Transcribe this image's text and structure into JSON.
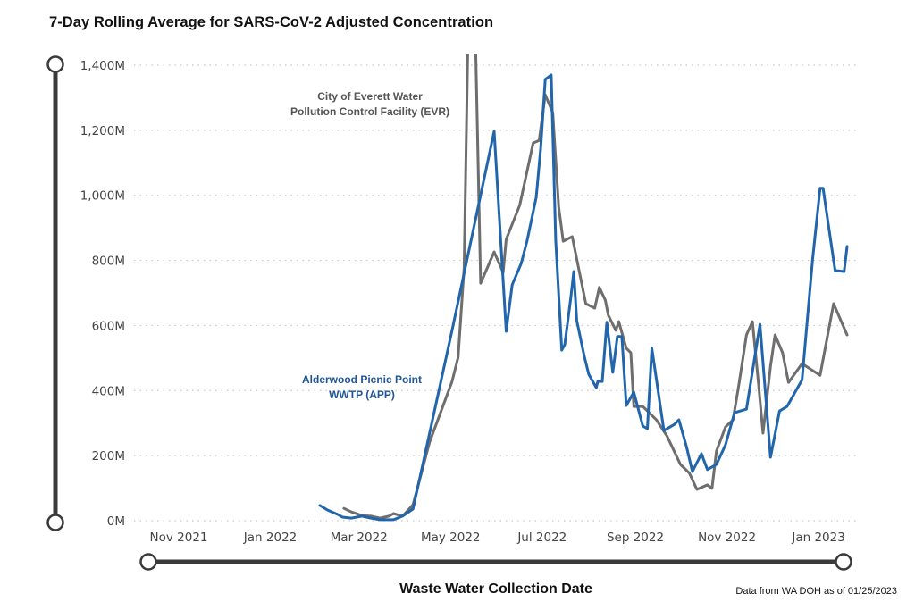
{
  "chart_data": {
    "type": "line",
    "title": "7-Day Rolling Average for SARS-CoV-2 Adjusted Concentration",
    "xlabel": "Waste Water Collection Date",
    "ylabel": "",
    "footnote": "Data from WA DOH as of 01/25/2023",
    "ylim": [
      0,
      1400
    ],
    "y_unit": "M",
    "y_ticks": [
      0,
      200,
      400,
      600,
      800,
      1000,
      1200,
      1400
    ],
    "y_tick_labels": [
      "0M",
      "200M",
      "400M",
      "600M",
      "800M",
      "1,000M",
      "1,200M",
      "1,400M"
    ],
    "xlim": [
      "2021-10-20",
      "2023-01-25"
    ],
    "x_ticks": [
      "2021-11-01",
      "2022-01-01",
      "2022-03-01",
      "2022-05-01",
      "2022-07-01",
      "2022-09-01",
      "2022-11-01",
      "2023-01-01"
    ],
    "x_tick_labels": [
      "Nov 2021",
      "Jan 2022",
      "Mar 2022",
      "May 2022",
      "Jul 2022",
      "Sep 2022",
      "Nov 2022",
      "Jan 2023"
    ],
    "grid": "horizontal-dotted",
    "series": [
      {
        "name": "Alderwood Picnic Point WWTP (APP)",
        "label_lines": [
          "Alderwood Picnic Point",
          "WWTP (APP)"
        ],
        "color": "#2166ac",
        "points": [
          [
            "2022-02-03",
            47
          ],
          [
            "2022-02-08",
            33
          ],
          [
            "2022-02-15",
            19
          ],
          [
            "2022-02-18",
            11
          ],
          [
            "2022-02-24",
            8
          ],
          [
            "2022-03-03",
            14
          ],
          [
            "2022-03-09",
            8
          ],
          [
            "2022-03-15",
            3
          ],
          [
            "2022-03-24",
            3
          ],
          [
            "2022-03-30",
            14
          ],
          [
            "2022-04-06",
            36
          ],
          [
            "2022-05-02",
            585
          ],
          [
            "2022-05-30",
            1197
          ],
          [
            "2022-06-07",
            582
          ],
          [
            "2022-06-11",
            725
          ],
          [
            "2022-06-17",
            791
          ],
          [
            "2022-06-21",
            862
          ],
          [
            "2022-06-27",
            994
          ],
          [
            "2022-06-30",
            1145
          ],
          [
            "2022-07-03",
            1356
          ],
          [
            "2022-07-07",
            1370
          ],
          [
            "2022-07-10",
            862
          ],
          [
            "2022-07-14",
            524
          ],
          [
            "2022-07-16",
            541
          ],
          [
            "2022-07-20",
            683
          ],
          [
            "2022-07-22",
            766
          ],
          [
            "2022-07-24",
            615
          ],
          [
            "2022-07-29",
            505
          ],
          [
            "2022-08-01",
            450
          ],
          [
            "2022-08-06",
            409
          ],
          [
            "2022-08-07",
            428
          ],
          [
            "2022-08-10",
            428
          ],
          [
            "2022-08-13",
            610
          ],
          [
            "2022-08-17",
            456
          ],
          [
            "2022-08-20",
            566
          ],
          [
            "2022-08-23",
            566
          ],
          [
            "2022-08-26",
            354
          ],
          [
            "2022-08-31",
            395
          ],
          [
            "2022-09-06",
            291
          ],
          [
            "2022-09-09",
            283
          ],
          [
            "2022-09-12",
            530
          ],
          [
            "2022-09-20",
            277
          ],
          [
            "2022-09-27",
            296
          ],
          [
            "2022-09-30",
            310
          ],
          [
            "2022-10-05",
            228
          ],
          [
            "2022-10-09",
            151
          ],
          [
            "2022-10-15",
            206
          ],
          [
            "2022-10-19",
            157
          ],
          [
            "2022-10-25",
            173
          ],
          [
            "2022-10-31",
            233
          ],
          [
            "2022-11-06",
            332
          ],
          [
            "2022-11-14",
            343
          ],
          [
            "2022-11-23",
            604
          ],
          [
            "2022-11-30",
            195
          ],
          [
            "2022-12-06",
            337
          ],
          [
            "2022-12-11",
            351
          ],
          [
            "2022-12-21",
            433
          ],
          [
            "2022-12-28",
            803
          ],
          [
            "2023-01-02",
            1022
          ],
          [
            "2023-01-04",
            1022
          ],
          [
            "2023-01-09",
            862
          ],
          [
            "2023-01-12",
            769
          ],
          [
            "2023-01-18",
            766
          ],
          [
            "2023-01-20",
            843
          ]
        ]
      },
      {
        "name": "City of Everett Water Pollution Control Facility (EVR)",
        "label_lines": [
          "City of Everett Water",
          "Pollution Control Facility (EVR)"
        ],
        "color": "#6e6e6e",
        "points": [
          [
            "2022-02-19",
            38
          ],
          [
            "2022-02-24",
            27
          ],
          [
            "2022-03-03",
            16
          ],
          [
            "2022-03-09",
            14
          ],
          [
            "2022-03-15",
            8
          ],
          [
            "2022-03-21",
            14
          ],
          [
            "2022-03-24",
            22
          ],
          [
            "2022-03-30",
            14
          ],
          [
            "2022-04-06",
            49
          ],
          [
            "2022-04-17",
            241
          ],
          [
            "2022-05-02",
            428
          ],
          [
            "2022-05-06",
            502
          ],
          [
            "2022-05-10",
            777
          ],
          [
            "2022-05-13",
            1600
          ],
          [
            "2022-05-17",
            1600
          ],
          [
            "2022-05-21",
            730
          ],
          [
            "2022-05-30",
            826
          ],
          [
            "2022-06-05",
            763
          ],
          [
            "2022-06-07",
            865
          ],
          [
            "2022-06-16",
            969
          ],
          [
            "2022-06-25",
            1161
          ],
          [
            "2022-06-29",
            1169
          ],
          [
            "2022-07-03",
            1309
          ],
          [
            "2022-07-08",
            1254
          ],
          [
            "2022-07-12",
            963
          ],
          [
            "2022-07-15",
            859
          ],
          [
            "2022-07-21",
            873
          ],
          [
            "2022-07-30",
            667
          ],
          [
            "2022-08-05",
            653
          ],
          [
            "2022-08-08",
            717
          ],
          [
            "2022-08-12",
            678
          ],
          [
            "2022-08-14",
            631
          ],
          [
            "2022-08-19",
            585
          ],
          [
            "2022-08-21",
            612
          ],
          [
            "2022-08-26",
            530
          ],
          [
            "2022-08-29",
            516
          ],
          [
            "2022-08-31",
            351
          ],
          [
            "2022-09-06",
            351
          ],
          [
            "2022-09-15",
            310
          ],
          [
            "2022-09-22",
            261
          ],
          [
            "2022-10-01",
            173
          ],
          [
            "2022-10-07",
            146
          ],
          [
            "2022-10-12",
            96
          ],
          [
            "2022-10-19",
            110
          ],
          [
            "2022-10-22",
            99
          ],
          [
            "2022-10-25",
            214
          ],
          [
            "2022-10-31",
            288
          ],
          [
            "2022-11-05",
            310
          ],
          [
            "2022-11-09",
            420
          ],
          [
            "2022-11-14",
            571
          ],
          [
            "2022-11-18",
            612
          ],
          [
            "2022-11-22",
            420
          ],
          [
            "2022-11-25",
            269
          ],
          [
            "2022-11-30",
            475
          ],
          [
            "2022-12-03",
            571
          ],
          [
            "2022-12-08",
            516
          ],
          [
            "2022-12-12",
            425
          ],
          [
            "2022-12-21",
            483
          ],
          [
            "2023-01-02",
            447
          ],
          [
            "2023-01-11",
            667
          ],
          [
            "2023-01-20",
            571
          ]
        ]
      }
    ]
  },
  "page": {
    "title": "7-Day Rolling Average for SARS-CoV-2 Adjusted Concentration",
    "x_axis_title": "Waste Water Collection Date",
    "footnote": "Data from WA DOH as of 01/25/2023"
  },
  "sliders": {
    "y_range": {
      "label": "y-axis-range-slider",
      "from_pct": 0,
      "to_pct": 100
    },
    "x_range": {
      "label": "x-axis-range-slider",
      "from_pct": 0,
      "to_pct": 100
    }
  }
}
